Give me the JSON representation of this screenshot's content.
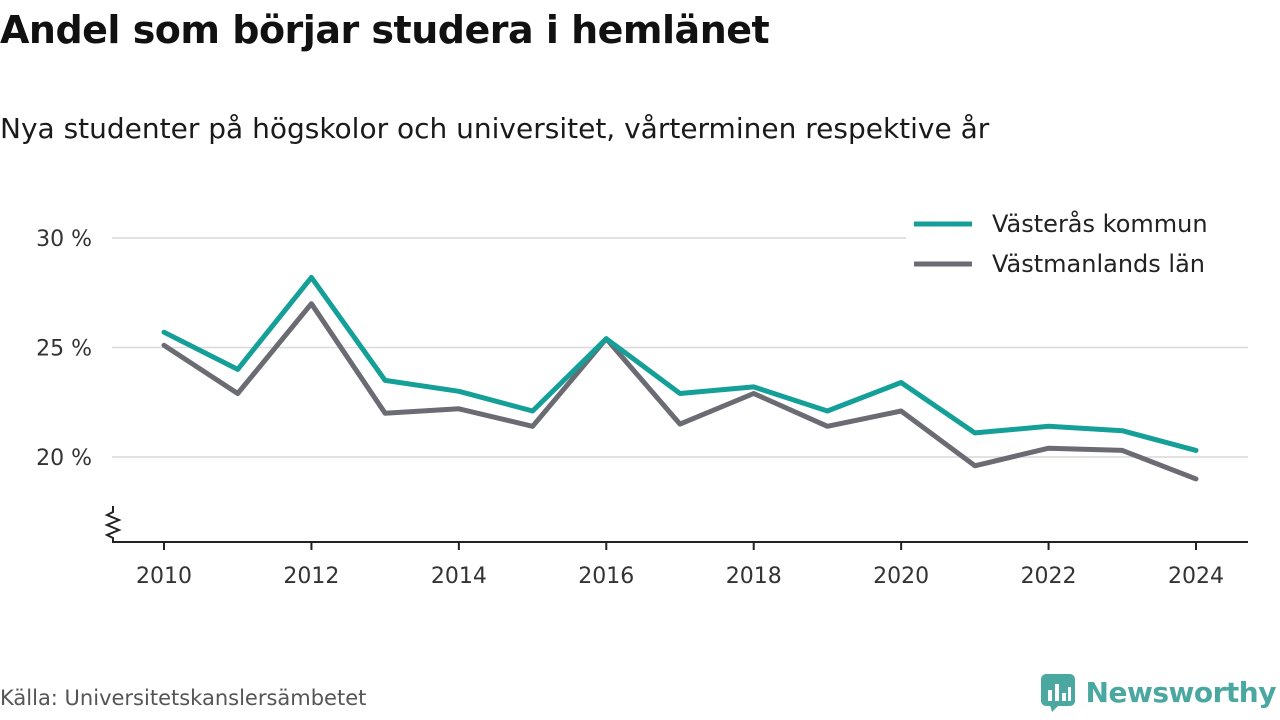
{
  "title": "Andel som börjar studera i hemlänet",
  "subtitle": "Nya studenter på högskolor och universitet, vårterminen respektive år",
  "source": "Källa: Universitetskanslersämbetet",
  "brand": {
    "name": "Newsworthy",
    "icon": "newsworthy-logo-icon",
    "color": "#4aa8a0"
  },
  "chart_data": {
    "type": "line",
    "x": [
      2010,
      2011,
      2012,
      2013,
      2014,
      2015,
      2016,
      2017,
      2018,
      2019,
      2020,
      2021,
      2022,
      2023,
      2024
    ],
    "x_ticks": [
      2010,
      2012,
      2014,
      2016,
      2018,
      2020,
      2022,
      2024
    ],
    "y_ticks": [
      20,
      25,
      30
    ],
    "y_tick_labels": [
      "20 %",
      "25 %",
      "30 %"
    ],
    "ylim": [
      16.1,
      30
    ],
    "y_axis_break": true,
    "grid": true,
    "legend_position": "top-right",
    "series": [
      {
        "name": "Västerås kommun",
        "color": "#14a098",
        "values": [
          25.7,
          24.0,
          28.2,
          23.5,
          23.0,
          22.1,
          25.4,
          22.9,
          23.2,
          22.1,
          23.4,
          21.1,
          21.4,
          21.2,
          20.3
        ]
      },
      {
        "name": "Västmanlands län",
        "color": "#6b6b73",
        "values": [
          25.1,
          22.9,
          27.0,
          22.0,
          22.2,
          21.4,
          25.4,
          21.5,
          22.9,
          21.4,
          22.1,
          19.6,
          20.4,
          20.3,
          19.0
        ]
      }
    ]
  }
}
